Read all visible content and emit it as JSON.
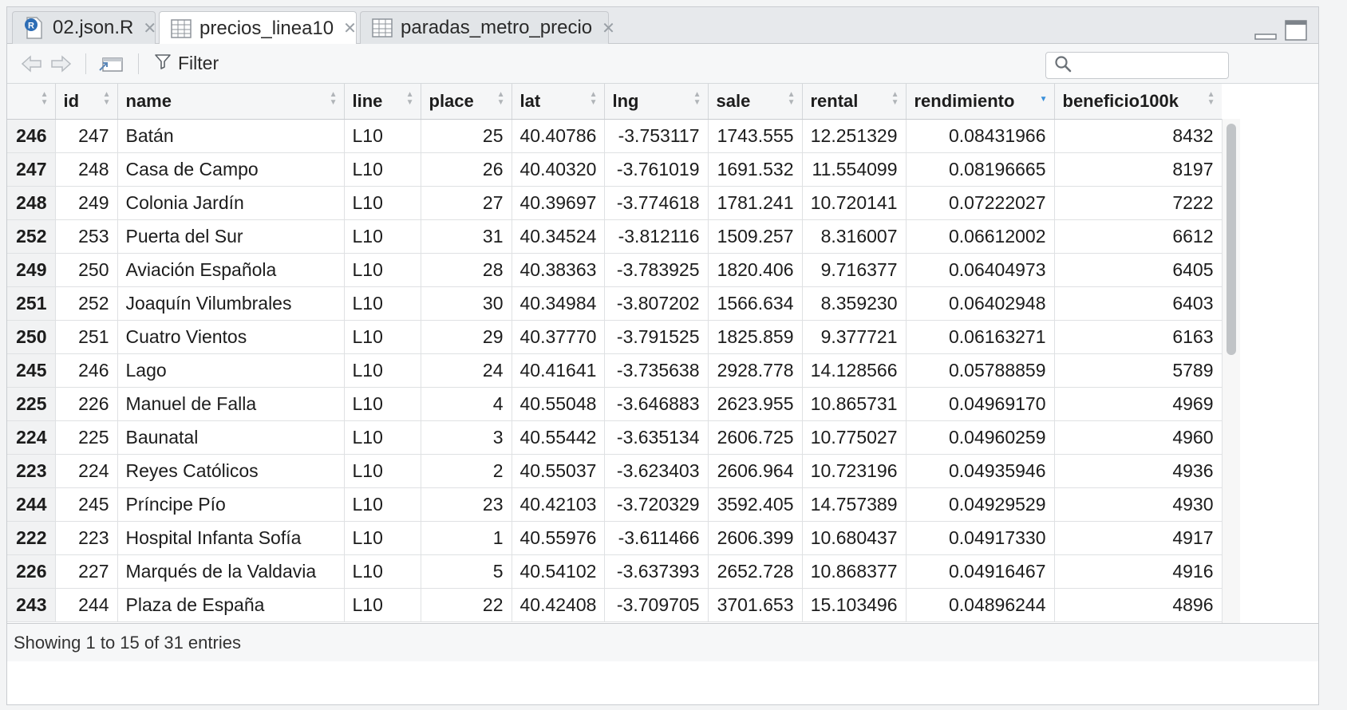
{
  "tabs": [
    {
      "label": "02.json.R",
      "icon": "r-file-icon"
    },
    {
      "label": "precios_linea10",
      "icon": "table-icon"
    },
    {
      "label": "paradas_metro_precio",
      "icon": "table-icon"
    }
  ],
  "toolbar": {
    "filter_label": "Filter",
    "search_placeholder": ""
  },
  "columns": [
    "",
    "id",
    "name",
    "line",
    "place",
    "lat",
    "lng",
    "sale",
    "rental",
    "rendimiento",
    "beneficio100k"
  ],
  "sorted_column": "rendimiento",
  "rows": [
    [
      "246",
      "247",
      "Batán",
      "L10",
      "25",
      "40.40786",
      "-3.753117",
      "1743.555",
      "12.251329",
      "0.08431966",
      "8432"
    ],
    [
      "247",
      "248",
      "Casa de Campo",
      "L10",
      "26",
      "40.40320",
      "-3.761019",
      "1691.532",
      "11.554099",
      "0.08196665",
      "8197"
    ],
    [
      "248",
      "249",
      "Colonia Jardín",
      "L10",
      "27",
      "40.39697",
      "-3.774618",
      "1781.241",
      "10.720141",
      "0.07222027",
      "7222"
    ],
    [
      "252",
      "253",
      "Puerta del Sur",
      "L10",
      "31",
      "40.34524",
      "-3.812116",
      "1509.257",
      "8.316007",
      "0.06612002",
      "6612"
    ],
    [
      "249",
      "250",
      "Aviación Española",
      "L10",
      "28",
      "40.38363",
      "-3.783925",
      "1820.406",
      "9.716377",
      "0.06404973",
      "6405"
    ],
    [
      "251",
      "252",
      "Joaquín Vilumbrales",
      "L10",
      "30",
      "40.34984",
      "-3.807202",
      "1566.634",
      "8.359230",
      "0.06402948",
      "6403"
    ],
    [
      "250",
      "251",
      "Cuatro Vientos",
      "L10",
      "29",
      "40.37770",
      "-3.791525",
      "1825.859",
      "9.377721",
      "0.06163271",
      "6163"
    ],
    [
      "245",
      "246",
      "Lago",
      "L10",
      "24",
      "40.41641",
      "-3.735638",
      "2928.778",
      "14.128566",
      "0.05788859",
      "5789"
    ],
    [
      "225",
      "226",
      "Manuel de Falla",
      "L10",
      "4",
      "40.55048",
      "-3.646883",
      "2623.955",
      "10.865731",
      "0.04969170",
      "4969"
    ],
    [
      "224",
      "225",
      "Baunatal",
      "L10",
      "3",
      "40.55442",
      "-3.635134",
      "2606.725",
      "10.775027",
      "0.04960259",
      "4960"
    ],
    [
      "223",
      "224",
      "Reyes Católicos",
      "L10",
      "2",
      "40.55037",
      "-3.623403",
      "2606.964",
      "10.723196",
      "0.04935946",
      "4936"
    ],
    [
      "244",
      "245",
      "Príncipe Pío",
      "L10",
      "23",
      "40.42103",
      "-3.720329",
      "3592.405",
      "14.757389",
      "0.04929529",
      "4930"
    ],
    [
      "222",
      "223",
      "Hospital Infanta Sofía",
      "L10",
      "1",
      "40.55976",
      "-3.611466",
      "2606.399",
      "10.680437",
      "0.04917330",
      "4917"
    ],
    [
      "226",
      "227",
      "Marqués de la Valdavia",
      "L10",
      "5",
      "40.54102",
      "-3.637393",
      "2652.728",
      "10.868377",
      "0.04916467",
      "4916"
    ],
    [
      "243",
      "244",
      "Plaza de España",
      "L10",
      "22",
      "40.42408",
      "-3.709705",
      "3701.653",
      "15.103496",
      "0.04896244",
      "4896"
    ]
  ],
  "footer": {
    "status": "Showing 1 to 15 of 31 entries"
  }
}
